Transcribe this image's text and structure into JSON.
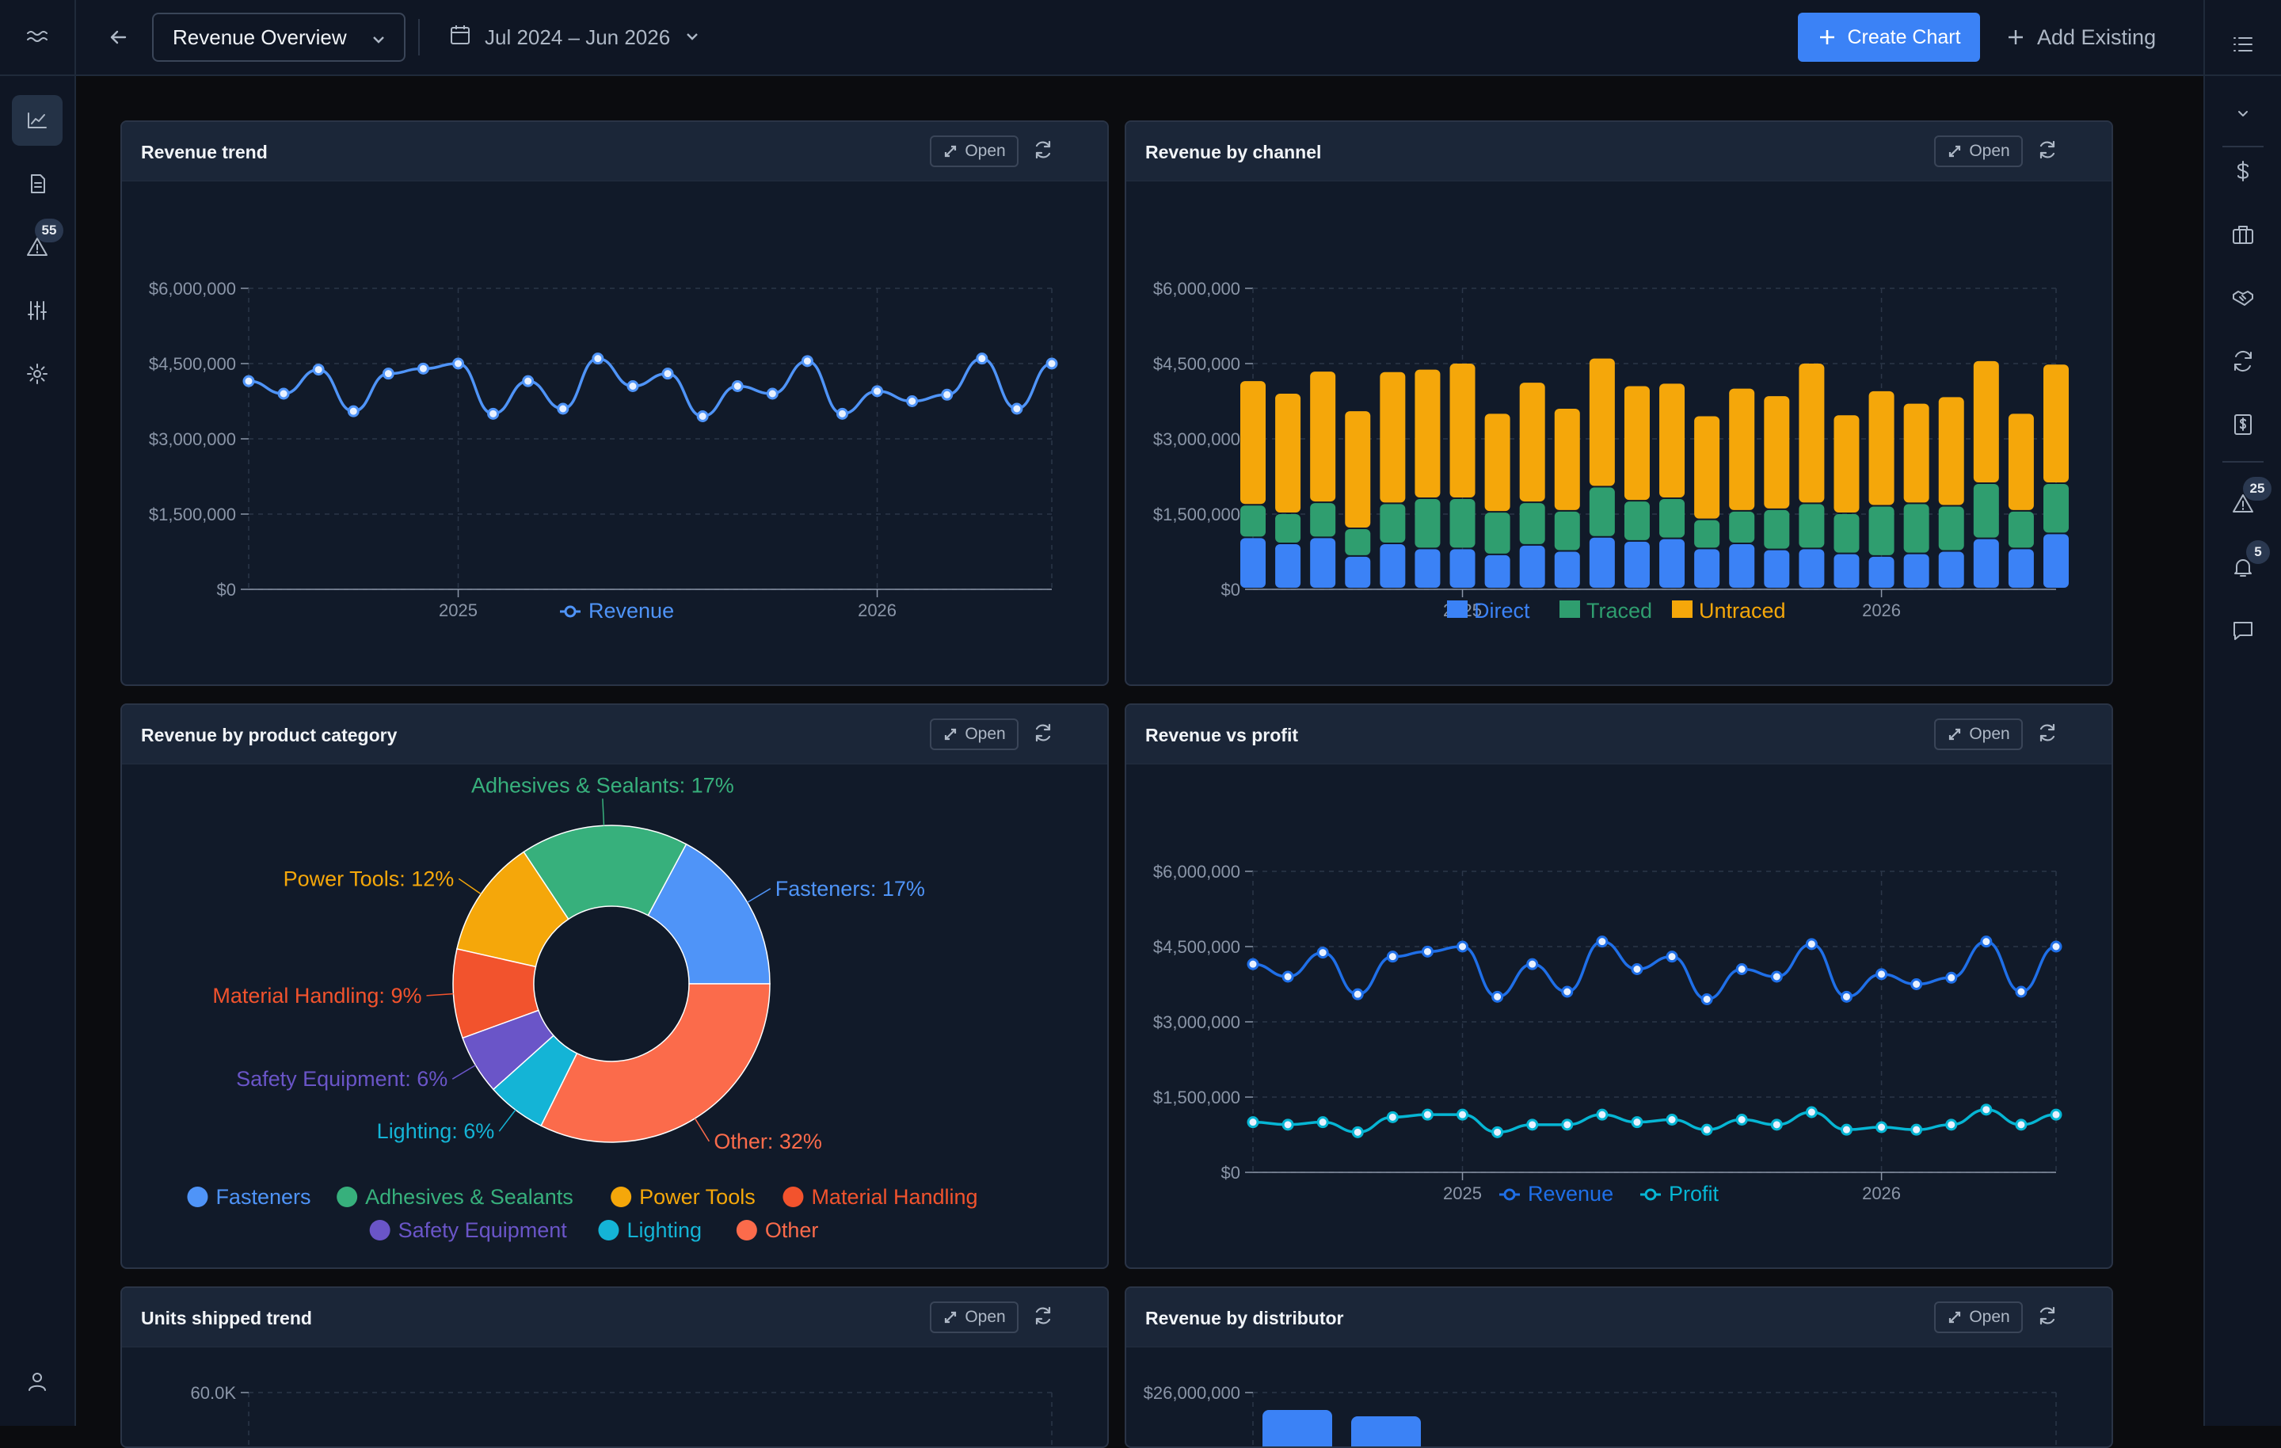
{
  "topbar": {
    "dashboard_name": "Revenue Overview",
    "date_range": "Jul 2024 – Jun 2026",
    "create_chart_label": "Create Chart",
    "add_existing_label": "Add Existing"
  },
  "left_rail": {
    "items": [
      "trend-icon",
      "document-icon",
      "alert-icon",
      "sliders-icon",
      "gear-icon",
      "user-icon"
    ],
    "alert_badge": "55"
  },
  "right_rail": {
    "items": [
      "list-icon",
      "chevron-down-icon",
      "dollar-icon",
      "briefcase-icon",
      "handshake-icon",
      "refresh-icon",
      "invoice-icon",
      "alert-icon",
      "bell-icon",
      "chat-icon"
    ],
    "alert_badge": "25",
    "bell_badge": "5"
  },
  "common": {
    "open_label": "Open"
  },
  "colors": {
    "revenue": "#3b82f6",
    "profit": "#06b6d4",
    "direct": "#3b82f6",
    "traced": "#2f9e6f",
    "untraced": "#f5a70a",
    "bg": "#0b0c0f",
    "panel": "#111a29",
    "panel_head": "#1b2638",
    "accent": "#3b82f6"
  },
  "cards": [
    {
      "title": "Revenue trend"
    },
    {
      "title": "Revenue by channel"
    },
    {
      "title": "Revenue by product category"
    },
    {
      "title": "Revenue vs profit"
    },
    {
      "title": "Units shipped trend"
    },
    {
      "title": "Revenue by distributor"
    }
  ],
  "chart_data": [
    {
      "type": "line",
      "title": "Revenue trend",
      "x": [
        "Jul 2024",
        "Aug 2024",
        "Sep 2024",
        "Oct 2024",
        "Nov 2024",
        "Dec 2024",
        "Jan 2025",
        "Feb 2025",
        "Mar 2025",
        "Apr 2025",
        "May 2025",
        "Jun 2025",
        "Jul 2025",
        "Aug 2025",
        "Sep 2025",
        "Oct 2025",
        "Nov 2025",
        "Dec 2025",
        "Jan 2026",
        "Feb 2026",
        "Mar 2026",
        "Apr 2026",
        "May 2026",
        "Jun 2026"
      ],
      "x_ticks": [
        "2025",
        "2026"
      ],
      "ylim": [
        0,
        6000000
      ],
      "y_ticks": [
        "$0",
        "$1,500,000",
        "$3,000,000",
        "$4,500,000",
        "$6,000,000"
      ],
      "series": [
        {
          "name": "Revenue",
          "values": [
            4150000,
            3900000,
            4380000,
            3550000,
            4300000,
            4400000,
            4500000,
            3500000,
            4150000,
            3600000,
            4600000,
            4050000,
            4300000,
            3450000,
            4050000,
            3900000,
            4550000,
            3500000,
            3950000,
            3750000,
            3880000,
            4600000,
            3600000,
            4500000
          ]
        }
      ],
      "grid": true,
      "legend": "bottom"
    },
    {
      "type": "bar",
      "stacked": true,
      "title": "Revenue by channel",
      "x": [
        "Jul 2024",
        "Aug 2024",
        "Sep 2024",
        "Oct 2024",
        "Nov 2024",
        "Dec 2024",
        "Jan 2025",
        "Feb 2025",
        "Mar 2025",
        "Apr 2025",
        "May 2025",
        "Jun 2025",
        "Jul 2025",
        "Aug 2025",
        "Sep 2025",
        "Oct 2025",
        "Nov 2025",
        "Dec 2025",
        "Jan 2026",
        "Feb 2026",
        "Mar 2026",
        "Apr 2026",
        "May 2026",
        "Jun 2026"
      ],
      "x_ticks": [
        "2025",
        "2026"
      ],
      "ylim": [
        0,
        6000000
      ],
      "y_ticks": [
        "$0",
        "$1,500,000",
        "$3,000,000",
        "$4,500,000",
        "$6,000,000"
      ],
      "series": [
        {
          "name": "Direct",
          "values": [
            1020000,
            900000,
            1020000,
            650000,
            900000,
            800000,
            800000,
            680000,
            870000,
            750000,
            1030000,
            950000,
            1000000,
            800000,
            900000,
            780000,
            800000,
            700000,
            650000,
            700000,
            750000,
            1000000,
            800000,
            1100000
          ]
        },
        {
          "name": "Traced",
          "values": [
            650000,
            600000,
            700000,
            550000,
            800000,
            1000000,
            1000000,
            850000,
            850000,
            800000,
            1000000,
            800000,
            800000,
            580000,
            650000,
            800000,
            900000,
            800000,
            1000000,
            1000000,
            900000,
            1100000,
            750000,
            1000000
          ]
        },
        {
          "name": "Untraced",
          "values": [
            2480000,
            2400000,
            2620000,
            2350000,
            2630000,
            2580000,
            2700000,
            1970000,
            2400000,
            2050000,
            2570000,
            2300000,
            2300000,
            2070000,
            2450000,
            2270000,
            2800000,
            1970000,
            2300000,
            2000000,
            2180000,
            2450000,
            1950000,
            2380000
          ]
        }
      ],
      "grid": true,
      "legend": "bottom"
    },
    {
      "type": "pie",
      "donut": true,
      "title": "Revenue by product category",
      "categories": [
        "Fasteners",
        "Adhesives & Sealants",
        "Power Tools",
        "Material Handling",
        "Safety Equipment",
        "Lighting",
        "Other"
      ],
      "values": [
        17,
        17,
        12,
        9,
        6,
        6,
        32
      ],
      "labels": [
        "Fasteners: 17%",
        "Adhesives & Sealants: 17%",
        "Power Tools: 12%",
        "Material Handling: 9%",
        "Safety Equipment: 6%",
        "Lighting: 6%",
        "Other: 32%"
      ],
      "colors": [
        "#4f94f8",
        "#37b07c",
        "#f5a70a",
        "#f2532d",
        "#6a55c8",
        "#14b4d6",
        "#fb6b4b"
      ],
      "legend": "bottom"
    },
    {
      "type": "line",
      "title": "Revenue vs profit",
      "x": [
        "Jul 2024",
        "Aug 2024",
        "Sep 2024",
        "Oct 2024",
        "Nov 2024",
        "Dec 2024",
        "Jan 2025",
        "Feb 2025",
        "Mar 2025",
        "Apr 2025",
        "May 2025",
        "Jun 2025",
        "Jul 2025",
        "Aug 2025",
        "Sep 2025",
        "Oct 2025",
        "Nov 2025",
        "Dec 2025",
        "Jan 2026",
        "Feb 2026",
        "Mar 2026",
        "Apr 2026",
        "May 2026",
        "Jun 2026"
      ],
      "x_ticks": [
        "2025",
        "2026"
      ],
      "ylim": [
        0,
        6000000
      ],
      "y_ticks": [
        "$0",
        "$1,500,000",
        "$3,000,000",
        "$4,500,000",
        "$6,000,000"
      ],
      "series": [
        {
          "name": "Revenue",
          "values": [
            4150000,
            3900000,
            4380000,
            3550000,
            4300000,
            4400000,
            4500000,
            3500000,
            4150000,
            3600000,
            4600000,
            4050000,
            4300000,
            3450000,
            4050000,
            3900000,
            4550000,
            3500000,
            3950000,
            3750000,
            3880000,
            4600000,
            3600000,
            4500000
          ]
        },
        {
          "name": "Profit",
          "values": [
            1000000,
            950000,
            1000000,
            800000,
            1100000,
            1150000,
            1150000,
            800000,
            950000,
            950000,
            1150000,
            1000000,
            1050000,
            850000,
            1050000,
            950000,
            1200000,
            850000,
            900000,
            850000,
            950000,
            1250000,
            950000,
            1150000
          ]
        }
      ],
      "grid": true,
      "legend": "bottom"
    },
    {
      "type": "line",
      "title": "Units shipped trend",
      "y_ticks": [
        "60.0K"
      ]
    },
    {
      "type": "bar",
      "title": "Revenue by distributor",
      "y_ticks": [
        "$26,000,000"
      ]
    }
  ]
}
